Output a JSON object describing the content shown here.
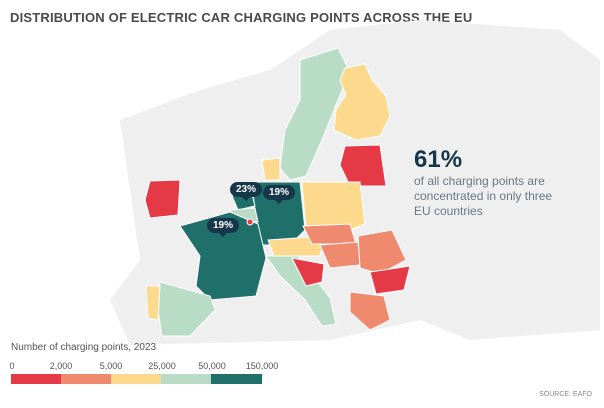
{
  "title": "DISTRIBUTION OF ELECTRIC CAR CHARGING POINTS ACROSS THE EU",
  "stat": {
    "value": "61%",
    "text": "of all charging points are concentrated in only three EU countries"
  },
  "callouts": {
    "netherlands": "23%",
    "germany": "19%",
    "france": "19%"
  },
  "legend": {
    "title": "Number of charging points, 2023",
    "ticks": [
      "0",
      "2,000",
      "5,000",
      "25,000",
      "50,000",
      "150,000"
    ],
    "colors": [
      "#e63946",
      "#f08a6e",
      "#fcd98c",
      "#b8dcc6",
      "#1f6f6b"
    ]
  },
  "source": "SOURCE: EAFO"
}
